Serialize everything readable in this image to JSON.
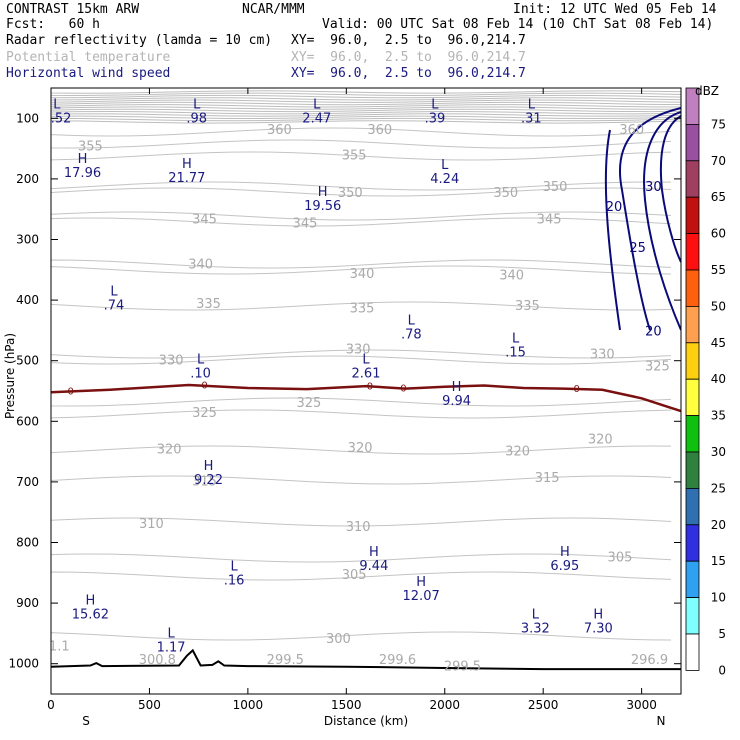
{
  "header": {
    "model": "CONTRAST 15km ARW",
    "center": "NCAR/MMM",
    "init": "Init: 12 UTC Wed 05 Feb 14",
    "fcst": "Fcst:   60 h",
    "valid": "Valid: 00 UTC Sat 08 Feb 14 (10 ChT Sat 08 Feb 14)",
    "fields": [
      {
        "name": "Radar reflectivity (lamda = 10 cm)",
        "xy": "XY=  96.0,  2.5 to  96.0,214.7",
        "color": "#000000"
      },
      {
        "name": "Potential temperature",
        "xy": "XY=  96.0,  2.5 to  96.0,214.7",
        "color": "#b4b4b4"
      },
      {
        "name": "Horizontal wind speed",
        "xy": "XY=  96.0,  2.5 to  96.0,214.7",
        "color": "#1a1a80"
      }
    ]
  },
  "chart_data": {
    "type": "cross-section",
    "xlabel": "Distance (km)",
    "ylabel": "Pressure (hPa)",
    "xlim": [
      0,
      3200
    ],
    "ylim": [
      1050,
      50
    ],
    "xticks": [
      0,
      500,
      1000,
      1500,
      2000,
      2500,
      3000
    ],
    "yticks": [
      100,
      200,
      300,
      400,
      500,
      600,
      700,
      800,
      900,
      1000
    ],
    "endpoints": {
      "left": "S",
      "right": "N"
    },
    "colorbar": {
      "unit": "dBZ",
      "levels": [
        "75",
        "70",
        "65",
        "60",
        "55",
        "50",
        "45",
        "40",
        "35",
        "30",
        "25",
        "20",
        "15",
        "10",
        "5",
        "0"
      ],
      "colors": [
        "#c080c0",
        "#9a50a0",
        "#a04060",
        "#c01010",
        "#ff1010",
        "#ff6010",
        "#ffa050",
        "#ffd010",
        "#ffff40",
        "#10c010",
        "#308040",
        "#3070b0",
        "#3030e0",
        "#30a0f0",
        "#80ffff",
        "#ffffff"
      ]
    },
    "theta_labels": [
      {
        "t": "360",
        "x": 1160,
        "p": 118
      },
      {
        "t": "360",
        "x": 1670,
        "p": 118
      },
      {
        "t": "360",
        "x": 2950,
        "p": 118
      },
      {
        "t": "355",
        "x": 200,
        "p": 145
      },
      {
        "t": "355",
        "x": 1540,
        "p": 160
      },
      {
        "t": "350",
        "x": 1520,
        "p": 222
      },
      {
        "t": "350",
        "x": 2310,
        "p": 222
      },
      {
        "t": "350",
        "x": 2560,
        "p": 212
      },
      {
        "t": "345",
        "x": 780,
        "p": 265
      },
      {
        "t": "345",
        "x": 1290,
        "p": 272
      },
      {
        "t": "345",
        "x": 2530,
        "p": 265
      },
      {
        "t": "340",
        "x": 760,
        "p": 340
      },
      {
        "t": "340",
        "x": 1580,
        "p": 355
      },
      {
        "t": "340",
        "x": 2340,
        "p": 358
      },
      {
        "t": "335",
        "x": 800,
        "p": 405
      },
      {
        "t": "335",
        "x": 1580,
        "p": 412
      },
      {
        "t": "335",
        "x": 2420,
        "p": 408
      },
      {
        "t": "330",
        "x": 610,
        "p": 498
      },
      {
        "t": "330",
        "x": 1560,
        "p": 480
      },
      {
        "t": "330",
        "x": 2800,
        "p": 488
      },
      {
        "t": "325",
        "x": 780,
        "p": 585
      },
      {
        "t": "325",
        "x": 1310,
        "p": 568
      },
      {
        "t": "325",
        "x": 3080,
        "p": 508
      },
      {
        "t": "320",
        "x": 600,
        "p": 645
      },
      {
        "t": "320",
        "x": 1570,
        "p": 642
      },
      {
        "t": "320",
        "x": 2370,
        "p": 648
      },
      {
        "t": "320",
        "x": 2790,
        "p": 628
      },
      {
        "t": "315",
        "x": 780,
        "p": 698
      },
      {
        "t": "315",
        "x": 2520,
        "p": 692
      },
      {
        "t": "310",
        "x": 510,
        "p": 768
      },
      {
        "t": "310",
        "x": 1560,
        "p": 773
      },
      {
        "t": "305",
        "x": 2890,
        "p": 823
      },
      {
        "t": "305",
        "x": 1540,
        "p": 852
      },
      {
        "t": "300",
        "x": 1460,
        "p": 958
      },
      {
        "t": "301.1",
        "x": 0,
        "p": 970
      },
      {
        "t": "300.8",
        "x": 540,
        "p": 992
      },
      {
        "t": "299.5",
        "x": 1190,
        "p": 992
      },
      {
        "t": "299.6",
        "x": 1760,
        "p": 992
      },
      {
        "t": "299.5",
        "x": 2090,
        "p": 1003
      },
      {
        "t": "296.9",
        "x": 3040,
        "p": 992
      }
    ],
    "extrema": [
      {
        "type": "L",
        "value": "2.52",
        "x": 30,
        "p": 84
      },
      {
        "type": "L",
        "value": ".98",
        "x": 740,
        "p": 84
      },
      {
        "type": "L",
        "value": "2.47",
        "x": 1350,
        "p": 84
      },
      {
        "type": "L",
        "value": ".39",
        "x": 1950,
        "p": 84
      },
      {
        "type": "L",
        "value": ".31",
        "x": 2440,
        "p": 84
      },
      {
        "type": "H",
        "value": "17.96",
        "x": 160,
        "p": 174
      },
      {
        "type": "H",
        "value": "21.77",
        "x": 690,
        "p": 182
      },
      {
        "type": "L",
        "value": "4.24",
        "x": 2000,
        "p": 184
      },
      {
        "type": "H",
        "value": "19.56",
        "x": 1380,
        "p": 228
      },
      {
        "type": "L",
        "value": ".74",
        "x": 320,
        "p": 392
      },
      {
        "type": "L",
        "value": ".78",
        "x": 1830,
        "p": 440
      },
      {
        "type": "L",
        "value": ".15",
        "x": 2360,
        "p": 470
      },
      {
        "type": "L",
        "value": ".10",
        "x": 760,
        "p": 505
      },
      {
        "type": "L",
        "value": "2.61",
        "x": 1600,
        "p": 505
      },
      {
        "type": "H",
        "value": "9.94",
        "x": 2060,
        "p": 550
      },
      {
        "type": "H",
        "value": "9.22",
        "x": 800,
        "p": 680
      },
      {
        "type": "L",
        "value": ".16",
        "x": 930,
        "p": 846
      },
      {
        "type": "H",
        "value": "9.44",
        "x": 1640,
        "p": 822
      },
      {
        "type": "H",
        "value": "6.95",
        "x": 2610,
        "p": 822
      },
      {
        "type": "H",
        "value": "12.07",
        "x": 1880,
        "p": 872
      },
      {
        "type": "H",
        "value": "15.62",
        "x": 200,
        "p": 902
      },
      {
        "type": "L",
        "value": "3.32",
        "x": 2460,
        "p": 925
      },
      {
        "type": "H",
        "value": "7.30",
        "x": 2780,
        "p": 925
      },
      {
        "type": "L",
        "value": "1.17",
        "x": 610,
        "p": 957
      }
    ],
    "wind_contours": [
      {
        "label": "20",
        "x": 2860,
        "p": 245
      },
      {
        "label": "30",
        "x": 3060,
        "p": 212
      },
      {
        "label": "25",
        "x": 2980,
        "p": 312
      },
      {
        "label": "20",
        "x": 3060,
        "p": 450
      }
    ],
    "zero_dbz_line": {
      "label": "0",
      "x": [
        0,
        300,
        700,
        1000,
        1300,
        1600,
        1800,
        2000,
        2200,
        2400,
        2600,
        2800,
        3000,
        3150,
        3200
      ],
      "p": [
        552,
        548,
        540,
        545,
        547,
        542,
        546,
        543,
        541,
        545,
        546,
        548,
        562,
        578,
        583
      ]
    },
    "terrain": {
      "x": [
        0,
        200,
        230,
        260,
        650,
        690,
        720,
        760,
        820,
        850,
        880,
        1000,
        1500,
        2000,
        2500,
        3000,
        3200
      ],
      "p": [
        1005,
        1003,
        999,
        1004,
        1003,
        987,
        978,
        1003,
        1002,
        996,
        1003,
        1004,
        1005,
        1007,
        1009,
        1009,
        1009
      ]
    }
  }
}
